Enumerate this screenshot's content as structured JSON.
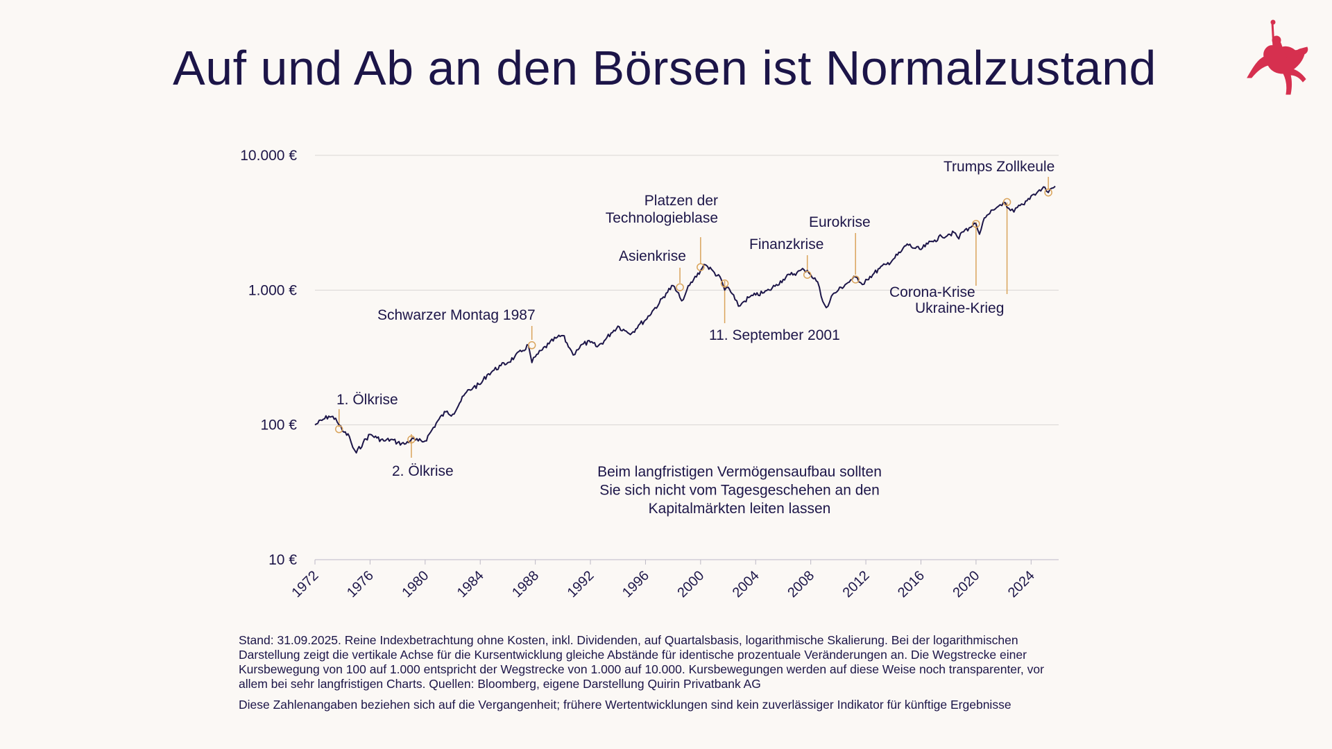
{
  "page": {
    "title": "Auf und Ab an den Börsen ist Normalzustand",
    "footnote_1": "Stand: 31.09.2025. Reine Indexbetrachtung ohne Kosten, inkl. Dividenden, auf Quartalsbasis, logarithmische Skalierung. Bei der logarithmischen Darstellung zeigt die vertikale Achse für die Kursentwicklung gleiche Abstände für identische prozentuale Veränderungen an. Die Wegstrecke einer Kursbewegung von 100 auf 1.000 entspricht der Wegstrecke von 1.000 auf 10.000. Kursbewegungen werden auf diese Weise noch transparenter, vor allem bei sehr langfristigen Charts. Quellen: Bloomberg, eigene Darstellung Quirin Privatbank AG",
    "footnote_2": "Diese Zahlenangaben beziehen sich auf die Vergangenheit; frühere Wertentwicklungen sind kein zuverlässiger Indikator für künftige Ergebnisse",
    "logo_icon": "knight-on-horse-logo-icon"
  },
  "colors": {
    "background": "#fbf8f5",
    "text": "#1c1548",
    "line": "#1c1548",
    "annotation": "#d9a35a",
    "grid": "#d9d6d3",
    "logo": "#d6304f"
  },
  "chart_data": {
    "type": "line",
    "y_scale": "log",
    "ylim": [
      10,
      10000
    ],
    "xlim": [
      1972,
      2025.75
    ],
    "grid": "horizontal",
    "y_ticks": [
      {
        "value": 10000,
        "label": "10.000 €"
      },
      {
        "value": 1000,
        "label": "1.000 €"
      },
      {
        "value": 100,
        "label": "100 €"
      },
      {
        "value": 10,
        "label": "10 €"
      }
    ],
    "x_ticks": [
      1972,
      1976,
      1980,
      1984,
      1988,
      1992,
      1996,
      2000,
      2004,
      2008,
      2012,
      2016,
      2020,
      2024
    ],
    "series": [
      {
        "x": [
          1972.0,
          1972.5,
          1973.0,
          1973.5,
          1973.75,
          1974.0,
          1974.5,
          1974.75,
          1975.0,
          1975.5,
          1976.0,
          1976.5,
          1977.0,
          1977.5,
          1978.0,
          1978.5,
          1979.0,
          1979.5,
          1980.0,
          1980.5,
          1981.0,
          1981.5,
          1982.0,
          1982.5,
          1983.0,
          1983.5,
          1984.0,
          1984.5,
          1985.0,
          1985.5,
          1986.0,
          1986.5,
          1987.0,
          1987.5,
          1987.75,
          1988.0,
          1988.5,
          1989.0,
          1989.5,
          1990.0,
          1990.5,
          1990.75,
          1991.0,
          1991.5,
          1992.0,
          1992.5,
          1993.0,
          1993.5,
          1994.0,
          1994.5,
          1995.0,
          1995.5,
          1996.0,
          1996.5,
          1997.0,
          1997.5,
          1998.0,
          1998.5,
          1998.75,
          1999.0,
          1999.5,
          2000.0,
          2000.25,
          2000.5,
          2001.0,
          2001.5,
          2001.75,
          2002.0,
          2002.5,
          2002.75,
          2003.0,
          2003.5,
          2004.0,
          2004.5,
          2005.0,
          2005.5,
          2006.0,
          2006.5,
          2007.0,
          2007.5,
          2007.75,
          2008.0,
          2008.5,
          2008.75,
          2009.0,
          2009.25,
          2009.5,
          2010.0,
          2010.5,
          2011.0,
          2011.25,
          2011.5,
          2011.75,
          2012.0,
          2012.5,
          2013.0,
          2013.5,
          2014.0,
          2014.5,
          2015.0,
          2015.5,
          2016.0,
          2016.5,
          2017.0,
          2017.5,
          2018.0,
          2018.5,
          2018.75,
          2019.0,
          2019.5,
          2019.75,
          2020.0,
          2020.25,
          2020.5,
          2021.0,
          2021.5,
          2021.75,
          2022.0,
          2022.25,
          2022.5,
          2022.75,
          2023.0,
          2023.5,
          2024.0,
          2024.5,
          2025.0,
          2025.25,
          2025.5,
          2025.75
        ],
        "y": [
          100,
          108,
          116,
          112,
          100,
          90,
          82,
          68,
          62,
          74,
          85,
          80,
          76,
          78,
          74,
          72,
          78,
          76,
          76,
          92,
          110,
          125,
          120,
          145,
          175,
          190,
          200,
          235,
          255,
          275,
          290,
          320,
          350,
          390,
          290,
          320,
          360,
          400,
          440,
          460,
          370,
          330,
          360,
          400,
          410,
          380,
          420,
          480,
          540,
          500,
          480,
          550,
          600,
          700,
          800,
          950,
          1080,
          880,
          850,
          1000,
          1200,
          1400,
          1550,
          1500,
          1350,
          1200,
          1000,
          1050,
          850,
          760,
          800,
          880,
          920,
          950,
          1000,
          1100,
          1200,
          1300,
          1350,
          1420,
          1400,
          1300,
          1150,
          900,
          780,
          760,
          900,
          1000,
          1100,
          1200,
          1250,
          1150,
          1100,
          1200,
          1300,
          1450,
          1550,
          1700,
          1900,
          2200,
          2050,
          2000,
          2200,
          2350,
          2500,
          2600,
          2650,
          2400,
          2700,
          2900,
          3000,
          3100,
          2600,
          3200,
          3700,
          4100,
          4300,
          4500,
          4100,
          3900,
          3800,
          4100,
          4300,
          5000,
          5400,
          5800,
          5300,
          5700,
          5900
        ]
      }
    ],
    "annotations": [
      {
        "label": "1. Ölkrise",
        "x": 1973.75,
        "y": 93
      },
      {
        "label": "2. Ölkrise",
        "x": 1979.0,
        "y": 78
      },
      {
        "label": "Schwarzer Montag 1987",
        "x": 1987.75,
        "y": 390
      },
      {
        "label": "Asienkrise",
        "x": 1998.5,
        "y": 1050
      },
      {
        "label": "Platzen der Technologieblase",
        "x": 2000.0,
        "y": 1480
      },
      {
        "label": "11. September 2001",
        "x": 2001.75,
        "y": 1120
      },
      {
        "label": "Finanzkrise",
        "x": 2007.75,
        "y": 1300
      },
      {
        "label": "Eurokrise",
        "x": 2011.25,
        "y": 1200
      },
      {
        "label": "Corona-Krise",
        "x": 2020.0,
        "y": 3100
      },
      {
        "label": "Ukraine-Krieg",
        "x": 2022.25,
        "y": 4500
      },
      {
        "label": "Trumps Zollkeule",
        "x": 2025.25,
        "y": 5300
      }
    ],
    "center_note": [
      "Beim langfristigen Vermögensaufbau sollten",
      "Sie sich nicht vom Tagesgeschehen an den",
      "Kapitalmärkten leiten lassen"
    ]
  }
}
